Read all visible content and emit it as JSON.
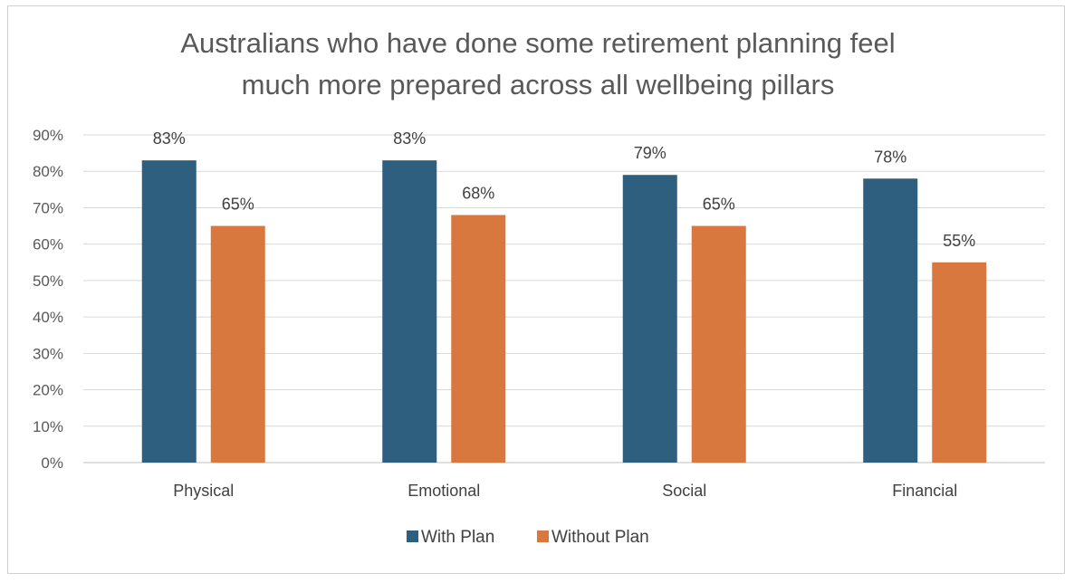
{
  "chart_data": {
    "type": "bar",
    "title_lines": [
      "Australians who have done some retirement planning feel",
      "much more prepared across all wellbeing pillars"
    ],
    "categories": [
      "Physical",
      "Emotional",
      "Social",
      "Financial"
    ],
    "series": [
      {
        "name": "With Plan",
        "color": "#2e5f7f",
        "values": [
          83,
          83,
          79,
          78
        ],
        "labels": [
          "83%",
          "83%",
          "79%",
          "78%"
        ]
      },
      {
        "name": "Without Plan",
        "color": "#d9783e",
        "values": [
          65,
          68,
          65,
          55
        ],
        "labels": [
          "65%",
          "68%",
          "65%",
          "55%"
        ]
      }
    ],
    "ylim": [
      0,
      90
    ],
    "yticks": [
      {
        "value": 0,
        "label": "0%"
      },
      {
        "value": 10,
        "label": "10%"
      },
      {
        "value": 20,
        "label": "20%"
      },
      {
        "value": 30,
        "label": "30%"
      },
      {
        "value": 40,
        "label": "40%"
      },
      {
        "value": 50,
        "label": "50%"
      },
      {
        "value": 60,
        "label": "60%"
      },
      {
        "value": 70,
        "label": "70%"
      },
      {
        "value": 80,
        "label": "80%"
      },
      {
        "value": 90,
        "label": "90%"
      }
    ],
    "grid": true,
    "legend_position": "bottom"
  }
}
